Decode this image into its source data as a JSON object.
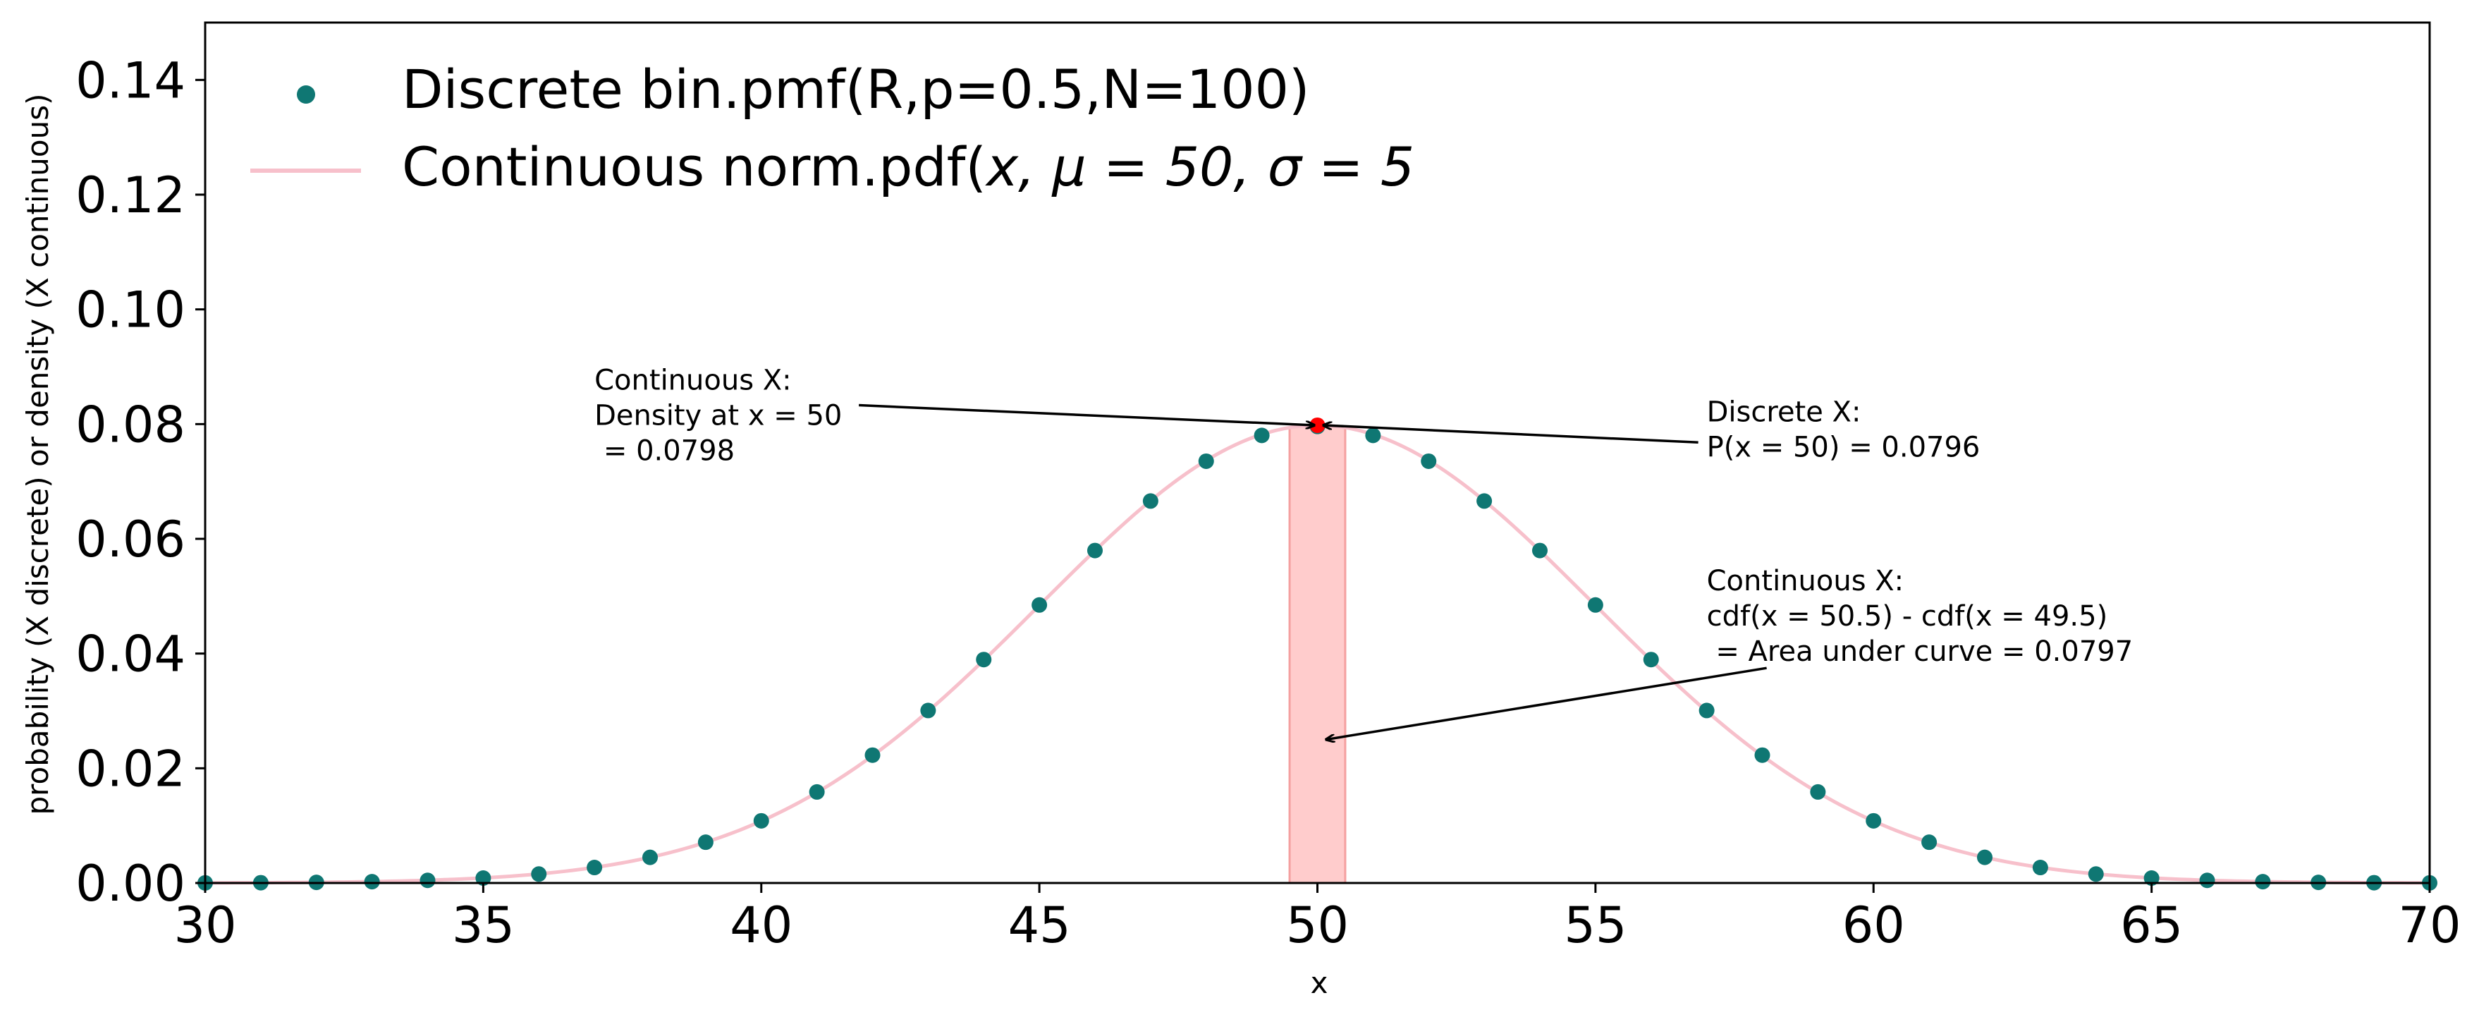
{
  "chart_data": {
    "type": "scatter",
    "title": "",
    "xlabel": "x",
    "ylabel": "probability (X discrete) or density (X continuous)",
    "xlim": [
      30,
      70
    ],
    "ylim": [
      0,
      0.15
    ],
    "xticks": [
      30,
      35,
      40,
      45,
      50,
      55,
      60,
      65,
      70
    ],
    "xtick_labels": [
      "30",
      "35",
      "40",
      "45",
      "50",
      "55",
      "60",
      "65",
      "70"
    ],
    "yticks": [
      0,
      0.02,
      0.04,
      0.06,
      0.08,
      0.1,
      0.12,
      0.14
    ],
    "ytick_labels": [
      "0.00",
      "0.02",
      "0.04",
      "0.06",
      "0.08",
      "0.10",
      "0.12",
      "0.14"
    ],
    "grid": false,
    "legend_position": "top-left",
    "series": [
      {
        "name": "Discrete bin.pmf(R,p=0.5,N=100)",
        "kind": "scatter",
        "color": "#0f7773",
        "x": [
          30,
          31,
          32,
          33,
          34,
          35,
          36,
          37,
          38,
          39,
          40,
          41,
          42,
          43,
          44,
          45,
          46,
          47,
          48,
          49,
          50,
          51,
          52,
          53,
          54,
          55,
          56,
          57,
          58,
          59,
          60,
          61,
          62,
          63,
          64,
          65,
          66,
          67,
          68,
          69,
          70
        ],
        "y": [
          2e-05,
          5e-05,
          0.00011,
          0.00023,
          0.00046,
          0.00086,
          0.00156,
          0.0027,
          0.00447,
          0.00711,
          0.01084,
          0.01587,
          0.02229,
          0.03007,
          0.03895,
          0.04847,
          0.05796,
          0.06659,
          0.07353,
          0.07803,
          0.07959,
          0.07803,
          0.07353,
          0.06659,
          0.05796,
          0.04847,
          0.03895,
          0.03007,
          0.02229,
          0.01587,
          0.01084,
          0.00711,
          0.00447,
          0.0027,
          0.00156,
          0.00086,
          0.00046,
          0.00023,
          0.00011,
          5e-05,
          2e-05
        ]
      },
      {
        "name": "Continuous norm.pdf($x, \\mu=50, \\sigma=5$",
        "kind": "line",
        "color": "#f7c0cb",
        "mu": 50,
        "sigma": 5
      }
    ],
    "shaded_region": {
      "x_from": 49.5,
      "x_to": 50.5,
      "color": "#ff9999",
      "alpha": 0.5,
      "edge_color": "#f4a0a0"
    },
    "highlight_point": {
      "x": 50,
      "y": 0.0798,
      "color": "#ff0000"
    },
    "legend": {
      "discrete_label": "Discrete bin.pmf(R,p=0.5,N=100)",
      "continuous_label_prefix": "Continuous norm.pdf(",
      "continuous_label_math": "x, μ = 50, σ = 5"
    },
    "annotations": [
      {
        "name": "density-annotation",
        "lines": [
          "Continuous X:",
          "Density at x = 50",
          " = 0.0798"
        ],
        "text_x": 37,
        "text_y": 0.086,
        "arrow_to": [
          49.95,
          0.0798
        ]
      },
      {
        "name": "discrete-annotation",
        "lines": [
          "Discrete X:",
          "P(x = 50) = 0.0796"
        ],
        "text_x": 57,
        "text_y": 0.0805,
        "arrow_to": [
          50.1,
          0.0798
        ]
      },
      {
        "name": "area-annotation",
        "lines": [
          "Continuous X:",
          "cdf(x = 50.5) - cdf(x = 49.5)",
          " = Area under curve = 0.0797"
        ],
        "text_x": 57,
        "text_y": 0.051,
        "arrow_to": [
          50.15,
          0.025
        ]
      }
    ]
  }
}
